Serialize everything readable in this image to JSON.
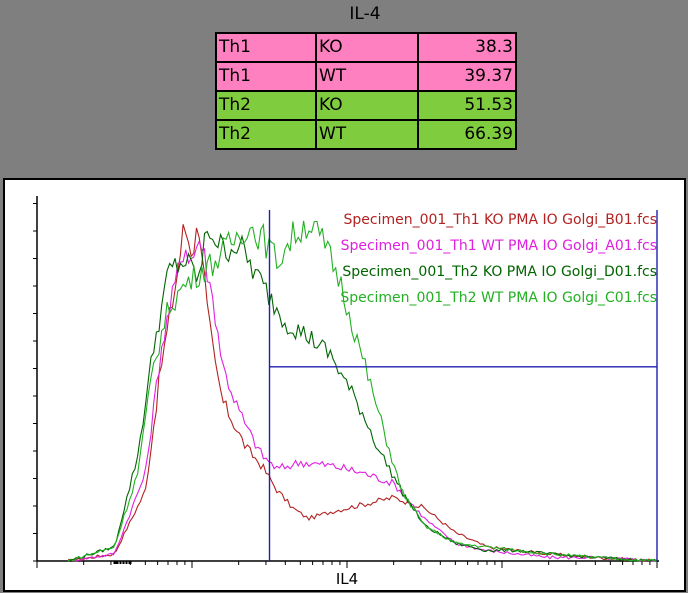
{
  "table": {
    "title": "IL-4",
    "rows": [
      {
        "cells": [
          "Th1",
          "KO",
          "38.3"
        ],
        "color": "#ff80c0"
      },
      {
        "cells": [
          "Th1",
          "WT",
          "39.37"
        ],
        "color": "#ff80c0"
      },
      {
        "cells": [
          "Th2",
          "KO",
          "51.53"
        ],
        "color": "#7fcc3f"
      },
      {
        "cells": [
          "Th2",
          "WT",
          "66.39"
        ],
        "color": "#7fcc3f"
      }
    ]
  },
  "chart_data": {
    "type": "line",
    "xlabel": "IL4",
    "xscale": "log",
    "grid": false,
    "legend_position": "top-right",
    "x_decades": [
      0.0,
      1.0,
      2.0,
      3.0,
      4.0
    ],
    "gate_x": 1.5,
    "gate_y": 0.55,
    "series": [
      {
        "name": "Specimen_001_Th1 KO PMA IO Golgi_B01.fcs",
        "color": "#b22222",
        "x": [
          0.2,
          0.5,
          0.7,
          0.8,
          0.9,
          0.95,
          1.0,
          1.05,
          1.1,
          1.15,
          1.2,
          1.28,
          1.35,
          1.45,
          1.55,
          1.65,
          1.75,
          1.9,
          2.1,
          2.3,
          2.5,
          2.7,
          2.9,
          3.1,
          3.3,
          3.6,
          4.0
        ],
        "y": [
          0.0,
          0.02,
          0.2,
          0.55,
          0.8,
          0.95,
          0.88,
          0.96,
          0.7,
          0.55,
          0.45,
          0.38,
          0.32,
          0.27,
          0.2,
          0.15,
          0.12,
          0.14,
          0.16,
          0.18,
          0.15,
          0.08,
          0.04,
          0.03,
          0.02,
          0.01,
          0.0
        ]
      },
      {
        "name": "Specimen_001_Th1 WT PMA IO Golgi_A01.fcs",
        "color": "#e020e0",
        "x": [
          0.2,
          0.5,
          0.7,
          0.8,
          0.9,
          0.95,
          1.0,
          1.05,
          1.1,
          1.15,
          1.2,
          1.28,
          1.35,
          1.45,
          1.55,
          1.7,
          1.9,
          2.1,
          2.3,
          2.5,
          2.7,
          2.9,
          3.1,
          3.3,
          3.6,
          4.0
        ],
        "y": [
          0.0,
          0.02,
          0.25,
          0.6,
          0.8,
          0.9,
          0.85,
          0.92,
          0.82,
          0.7,
          0.55,
          0.45,
          0.38,
          0.3,
          0.26,
          0.28,
          0.27,
          0.25,
          0.22,
          0.12,
          0.05,
          0.03,
          0.02,
          0.01,
          0.01,
          0.0
        ]
      },
      {
        "name": "Specimen_001_Th2 KO PMA IO Golgi_D01.fcs",
        "color": "#006400",
        "x": [
          0.2,
          0.5,
          0.65,
          0.75,
          0.85,
          0.95,
          1.05,
          1.1,
          1.2,
          1.3,
          1.4,
          1.5,
          1.6,
          1.7,
          1.8,
          1.9,
          2.0,
          2.1,
          2.2,
          2.35,
          2.5,
          2.7,
          2.9,
          3.1,
          3.3,
          3.6,
          4.0
        ],
        "y": [
          0.0,
          0.04,
          0.3,
          0.6,
          0.82,
          0.85,
          0.8,
          0.95,
          0.88,
          0.9,
          0.82,
          0.75,
          0.68,
          0.65,
          0.62,
          0.58,
          0.5,
          0.42,
          0.32,
          0.2,
          0.1,
          0.05,
          0.03,
          0.03,
          0.02,
          0.01,
          0.0
        ]
      },
      {
        "name": "Specimen_001_Th2 WT PMA IO Golgi_C01.fcs",
        "color": "#22b022",
        "x": [
          0.2,
          0.5,
          0.65,
          0.75,
          0.85,
          0.95,
          1.05,
          1.15,
          1.25,
          1.35,
          1.45,
          1.55,
          1.65,
          1.75,
          1.85,
          1.95,
          2.05,
          2.15,
          2.25,
          2.35,
          2.5,
          2.7,
          2.9,
          3.1,
          3.3,
          3.6,
          4.0
        ],
        "y": [
          0.0,
          0.04,
          0.25,
          0.55,
          0.72,
          0.78,
          0.82,
          0.85,
          0.9,
          0.95,
          0.92,
          0.85,
          0.92,
          0.96,
          0.9,
          0.8,
          0.65,
          0.5,
          0.35,
          0.2,
          0.1,
          0.05,
          0.04,
          0.03,
          0.02,
          0.01,
          0.0
        ]
      }
    ]
  }
}
